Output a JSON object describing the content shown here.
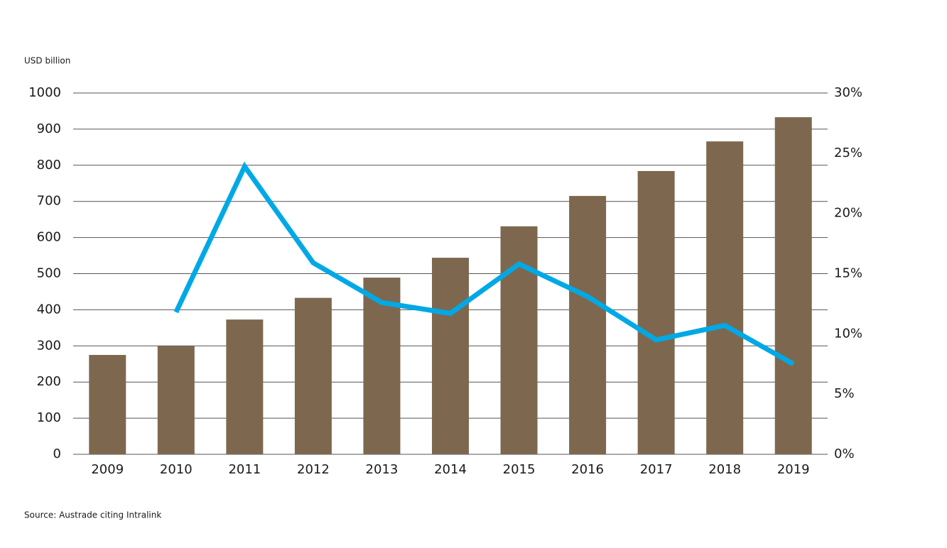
{
  "chart_data": {
    "type": "bar",
    "y_label": "USD billion",
    "source": "Source: Austrade citing Intralink",
    "categories": [
      "2009",
      "2010",
      "2011",
      "2012",
      "2013",
      "2014",
      "2015",
      "2016",
      "2017",
      "2018",
      "2019"
    ],
    "series": [
      {
        "type": "bar",
        "color": "#7d684f",
        "values": [
          275,
          300,
          373,
          433,
          489,
          544,
          631,
          715,
          784,
          866,
          933
        ]
      },
      {
        "type": "line",
        "axis": "y2",
        "color": "#00a9e6",
        "values": [
          null,
          11.8,
          23.9,
          15.9,
          12.6,
          11.7,
          15.8,
          13.1,
          9.5,
          10.7,
          7.5
        ]
      }
    ],
    "ylim": [
      0,
      1000
    ],
    "yticks": [
      0,
      100,
      200,
      300,
      400,
      500,
      600,
      700,
      800,
      900,
      1000
    ],
    "y2lim": [
      0,
      30
    ],
    "y2ticks": [
      {
        "value": 0,
        "label": "0%"
      },
      {
        "value": 5,
        "label": "5%"
      },
      {
        "value": 10,
        "label": "10%"
      },
      {
        "value": 15,
        "label": "15%"
      },
      {
        "value": 20,
        "label": "20%"
      },
      {
        "value": 25,
        "label": "25%"
      },
      {
        "value": 30,
        "label": "30%"
      }
    ],
    "grid": true
  }
}
